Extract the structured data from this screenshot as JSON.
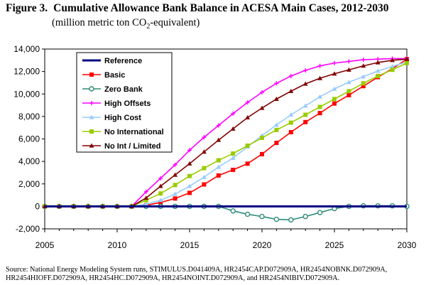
{
  "figure": {
    "label": "Figure 3.",
    "title": "Cumulative Allowance Bank Balance in ACESA Main Cases, 2012-2030",
    "subtitle_pre": "(million metric ton CO",
    "subtitle_sub": "2",
    "subtitle_post": "-equivalent)"
  },
  "source": {
    "line1": "Source:  National Energy Modeling System runs, STIMULUS.D041409A, HR2454CAP.D072909A, HR2454NOBNK.D072909A,",
    "line2": "HR2454HIOFF.D072909A, HR2454HC.D072909A, HR2454NOINT.D072909A, and HR2454NIBIV.D072909A."
  },
  "chart_data": {
    "type": "line",
    "title": "Cumulative Allowance Bank Balance in ACESA Main Cases, 2012-2030",
    "xlabel": "",
    "ylabel": "",
    "xlim": [
      2005,
      2030
    ],
    "ylim": [
      -2000,
      14000
    ],
    "x_ticks": [
      2005,
      2010,
      2015,
      2020,
      2025,
      2030
    ],
    "y_ticks": [
      -2000,
      0,
      2000,
      4000,
      6000,
      8000,
      10000,
      12000,
      14000
    ],
    "y_tick_labels": [
      "-2,000",
      "0",
      "2,000",
      "4,000",
      "6,000",
      "8,000",
      "10,000",
      "12,000",
      "14,000"
    ],
    "grid": false,
    "legend_position": "top-left",
    "x": [
      2005,
      2006,
      2007,
      2008,
      2009,
      2010,
      2011,
      2012,
      2013,
      2014,
      2015,
      2016,
      2017,
      2018,
      2019,
      2020,
      2021,
      2022,
      2023,
      2024,
      2025,
      2026,
      2027,
      2028,
      2029,
      2030
    ],
    "series": [
      {
        "name": "Reference",
        "color": "#000080",
        "marker": "none",
        "values": [
          0,
          0,
          0,
          0,
          0,
          0,
          0,
          0,
          0,
          0,
          0,
          0,
          0,
          0,
          0,
          0,
          0,
          0,
          0,
          0,
          0,
          0,
          0,
          0,
          0,
          0
        ]
      },
      {
        "name": "Basic",
        "color": "#ff0000",
        "marker": "square",
        "values": [
          0,
          0,
          0,
          0,
          0,
          0,
          0,
          100,
          350,
          700,
          1200,
          1950,
          2750,
          3250,
          3800,
          4650,
          5650,
          6600,
          7500,
          8300,
          9150,
          9900,
          10700,
          11500,
          12250,
          13100
        ]
      },
      {
        "name": "Zero Bank",
        "color": "#2e8b7a",
        "marker": "circle",
        "values": [
          0,
          0,
          0,
          0,
          0,
          0,
          0,
          0,
          0,
          0,
          0,
          0,
          0,
          -400,
          -700,
          -900,
          -1150,
          -1200,
          -900,
          -550,
          -200,
          0,
          50,
          50,
          50,
          0
        ]
      },
      {
        "name": "High Offsets",
        "color": "#ff00ff",
        "marker": "plus",
        "values": [
          0,
          0,
          0,
          0,
          0,
          0,
          0,
          1300,
          2500,
          3700,
          5000,
          6150,
          7200,
          8250,
          9250,
          10150,
          10950,
          11600,
          12100,
          12500,
          12750,
          12900,
          13050,
          13100,
          13150,
          13150
        ]
      },
      {
        "name": "High Cost",
        "color": "#99ccff",
        "marker": "triangle",
        "values": [
          0,
          0,
          0,
          0,
          0,
          0,
          0,
          200,
          550,
          1100,
          1800,
          2600,
          3500,
          4300,
          5300,
          6300,
          7250,
          8150,
          8950,
          9750,
          10450,
          11050,
          11550,
          12050,
          12450,
          12850
        ]
      },
      {
        "name": "No International",
        "color": "#99cc00",
        "marker": "square",
        "values": [
          0,
          0,
          0,
          0,
          0,
          0,
          0,
          550,
          1150,
          1900,
          2700,
          3400,
          4100,
          4700,
          5400,
          6100,
          6800,
          7450,
          8150,
          8850,
          9550,
          10250,
          10950,
          11600,
          12150,
          12750
        ]
      },
      {
        "name": "No Int / Limited",
        "color": "#800000",
        "marker": "triangle",
        "values": [
          0,
          0,
          0,
          0,
          0,
          0,
          0,
          750,
          1800,
          2800,
          3800,
          4850,
          5900,
          6900,
          7900,
          8750,
          9550,
          10250,
          10900,
          11400,
          11800,
          12150,
          12500,
          12800,
          13000,
          13100
        ]
      }
    ]
  }
}
